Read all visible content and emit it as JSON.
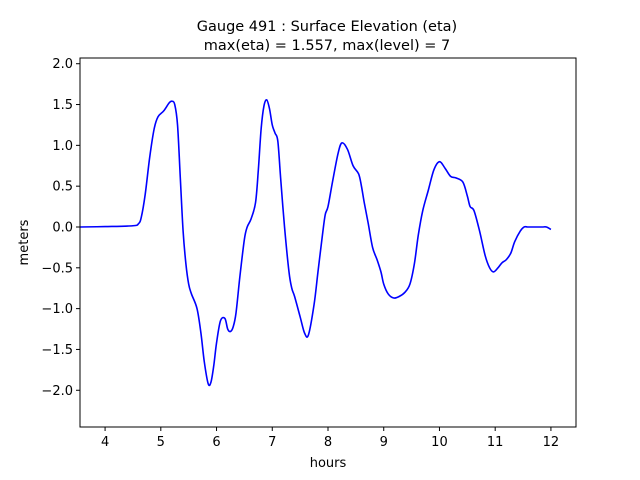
{
  "chart_data": {
    "type": "line",
    "title": "Gauge 491 : Surface Elevation (eta)",
    "subtitle": "max(eta) =   1.557,    max(level) = 7",
    "xlabel": "hours",
    "ylabel": "meters",
    "xlim": [
      3.55,
      12.45
    ],
    "ylim": [
      -2.45,
      2.07
    ],
    "xticks": [
      4,
      5,
      6,
      7,
      8,
      9,
      10,
      11,
      12
    ],
    "xtick_labels": [
      "4",
      "5",
      "6",
      "7",
      "8",
      "9",
      "10",
      "11",
      "12"
    ],
    "yticks": [
      2.0,
      1.5,
      1.0,
      0.5,
      0.0,
      -0.5,
      -1.0,
      -1.5,
      -2.0
    ],
    "ytick_labels": [
      "2.0",
      "1.5",
      "1.0",
      "0.5",
      "0.0",
      "−0.5",
      "−1.0",
      "−1.5",
      "−2.0"
    ],
    "grid": false,
    "series": [
      {
        "color": "#0000ff",
        "x": [
          3.55,
          4.0,
          4.5,
          4.6,
          4.65,
          4.72,
          4.8,
          4.88,
          4.95,
          5.05,
          5.15,
          5.2,
          5.25,
          5.3,
          5.35,
          5.4,
          5.45,
          5.5,
          5.55,
          5.65,
          5.72,
          5.78,
          5.85,
          5.9,
          5.95,
          6.0,
          6.07,
          6.15,
          6.2,
          6.25,
          6.3,
          6.35,
          6.42,
          6.5,
          6.55,
          6.62,
          6.7,
          6.75,
          6.8,
          6.85,
          6.9,
          6.95,
          7.0,
          7.05,
          7.1,
          7.15,
          7.22,
          7.3,
          7.35,
          7.4,
          7.5,
          7.58,
          7.65,
          7.75,
          7.82,
          7.9,
          7.95,
          8.0,
          8.08,
          8.18,
          8.25,
          8.35,
          8.45,
          8.55,
          8.6,
          8.65,
          8.72,
          8.8,
          8.88,
          8.95,
          9.0,
          9.08,
          9.18,
          9.28,
          9.38,
          9.47,
          9.55,
          9.62,
          9.7,
          9.8,
          9.9,
          10.0,
          10.1,
          10.2,
          10.3,
          10.42,
          10.5,
          10.55,
          10.62,
          10.72,
          10.82,
          10.9,
          10.97,
          11.05,
          11.12,
          11.2,
          11.28,
          11.35,
          11.45,
          11.52,
          11.58,
          11.65,
          11.75,
          11.85,
          11.92,
          12.0
        ],
        "y": [
          0.0,
          0.005,
          0.015,
          0.04,
          0.12,
          0.4,
          0.85,
          1.2,
          1.35,
          1.42,
          1.52,
          1.54,
          1.5,
          1.25,
          0.6,
          -0.05,
          -0.45,
          -0.7,
          -0.82,
          -1.0,
          -1.3,
          -1.65,
          -1.92,
          -1.9,
          -1.7,
          -1.42,
          -1.15,
          -1.12,
          -1.25,
          -1.28,
          -1.22,
          -1.05,
          -0.6,
          -0.15,
          0.0,
          0.1,
          0.3,
          0.7,
          1.2,
          1.48,
          1.557,
          1.45,
          1.25,
          1.15,
          1.05,
          0.6,
          0.0,
          -0.55,
          -0.75,
          -0.85,
          -1.1,
          -1.3,
          -1.32,
          -0.95,
          -0.55,
          -0.1,
          0.15,
          0.25,
          0.55,
          0.9,
          1.03,
          0.95,
          0.75,
          0.65,
          0.5,
          0.3,
          0.05,
          -0.25,
          -0.4,
          -0.55,
          -0.7,
          -0.82,
          -0.87,
          -0.85,
          -0.8,
          -0.7,
          -0.45,
          -0.1,
          0.2,
          0.45,
          0.7,
          0.8,
          0.72,
          0.62,
          0.6,
          0.55,
          0.38,
          0.25,
          0.2,
          -0.05,
          -0.35,
          -0.5,
          -0.55,
          -0.5,
          -0.44,
          -0.4,
          -0.32,
          -0.18,
          -0.05,
          0.0,
          0.0,
          0.0,
          0.0,
          0.0,
          0.0,
          -0.03
        ]
      }
    ]
  }
}
